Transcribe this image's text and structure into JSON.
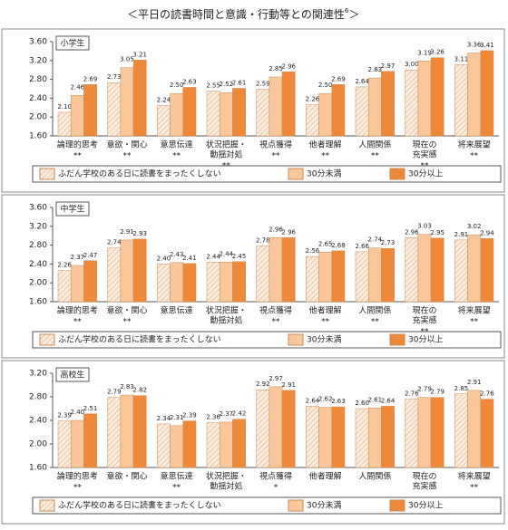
{
  "title": "＜平日の読書時間と意識・行動等との関連性",
  "title_note": "6",
  "title_end": "＞",
  "chart_data": [
    {
      "type": "bar",
      "panel": "小学生",
      "categories": [
        [
          "論理的思考"
        ],
        [
          "意欲・関心"
        ],
        [
          "意思伝達"
        ],
        [
          "状況把握・",
          "動揺対処"
        ],
        [
          "視点獲得"
        ],
        [
          "他者理解"
        ],
        [
          "人間関係"
        ],
        [
          "現在の",
          "充実感"
        ],
        [
          "将来展望"
        ]
      ],
      "significance": [
        "**",
        "**",
        "**",
        "**",
        "**",
        "**",
        "**",
        "**",
        "**"
      ],
      "ylim": [
        1.6,
        3.6
      ],
      "yticks": [
        {
          "value": 1.6,
          "label": "1.60"
        },
        {
          "value": 2,
          "label": "2.00"
        },
        {
          "value": 2.4,
          "label": "2.40"
        },
        {
          "value": 2.8,
          "label": "2.80"
        },
        {
          "value": 3.2,
          "label": "3.20"
        },
        {
          "value": 3.6,
          "label": "3.60"
        }
      ],
      "series": [
        {
          "name": "ふだん学校のある日に読書をまったくしない",
          "color": "#fbeee0",
          "pattern": "hatch",
          "values": [
            2.1,
            2.73,
            2.24,
            2.55,
            2.59,
            2.26,
            2.64,
            3.0,
            3.11
          ],
          "value_labels": [
            "2.10",
            "2.73",
            "2.24",
            "2.55",
            "2.59",
            "2.26",
            "2.64",
            "3.00",
            "3.11"
          ]
        },
        {
          "name": "30分未満",
          "color": "#f9c79a",
          "values": [
            2.46,
            3.05,
            2.5,
            2.52,
            2.85,
            2.5,
            2.83,
            3.19,
            3.36
          ],
          "value_labels": [
            "2.46",
            "3.05",
            "2.50",
            "2.52",
            "2.85",
            "2.50",
            "2.83",
            "3.19",
            "3.36"
          ]
        },
        {
          "name": "30分以上",
          "color": "#ef8838",
          "values": [
            2.69,
            3.21,
            2.63,
            2.61,
            2.96,
            2.69,
            2.97,
            3.26,
            3.41
          ],
          "value_labels": [
            "2.69",
            "3.21",
            "2.63",
            "2.61",
            "2.96",
            "2.69",
            "2.97",
            "3.26",
            "3.41"
          ]
        }
      ]
    },
    {
      "type": "bar",
      "panel": "中学生",
      "categories": [
        [
          "論理的思考"
        ],
        [
          "意欲・関心"
        ],
        [
          "意思伝達"
        ],
        [
          "状況把握・",
          "動揺対処"
        ],
        [
          "視点獲得"
        ],
        [
          "他者理解"
        ],
        [
          "人間関係"
        ],
        [
          "現在の",
          "充実感"
        ],
        [
          "将来展望"
        ]
      ],
      "significance": [
        "**",
        "**",
        null,
        null,
        "**",
        "**",
        "**",
        "**",
        "**"
      ],
      "ylim": [
        1.6,
        3.6
      ],
      "yticks": [
        {
          "value": 1.6,
          "label": "1.60"
        },
        {
          "value": 2,
          "label": "2.00"
        },
        {
          "value": 2.4,
          "label": "2.40"
        },
        {
          "value": 2.8,
          "label": "2.80"
        },
        {
          "value": 3.2,
          "label": "3.20"
        },
        {
          "value": 3.6,
          "label": "3.60"
        }
      ],
      "series": [
        {
          "name": "ふだん学校のある日に読書をまったくしない",
          "color": "#fbeee0",
          "pattern": "hatch",
          "values": [
            2.26,
            2.74,
            2.4,
            2.44,
            2.78,
            2.56,
            2.66,
            2.96,
            2.91
          ],
          "value_labels": [
            "2.26",
            "2.74",
            "2.40",
            "2.44",
            "2.78",
            "2.56",
            "2.66",
            "2.96",
            "2.91"
          ]
        },
        {
          "name": "30分未満",
          "color": "#f9c79a",
          "values": [
            2.37,
            2.91,
            2.43,
            2.44,
            2.96,
            2.65,
            2.74,
            3.03,
            3.02
          ],
          "value_labels": [
            "2.37",
            "2.91",
            "2.43",
            "2.44",
            "2.96",
            "2.65",
            "2.74",
            "3.03",
            "3.02"
          ]
        },
        {
          "name": "30分以上",
          "color": "#ef8838",
          "values": [
            2.47,
            2.93,
            2.41,
            2.45,
            2.96,
            2.68,
            2.73,
            2.95,
            2.94
          ],
          "value_labels": [
            "2.47",
            "2.93",
            "2.41",
            "2.45",
            "2.96",
            "2.68",
            "2.73",
            "2.95",
            "2.94"
          ]
        }
      ]
    },
    {
      "type": "bar",
      "panel": "高校生",
      "categories": [
        [
          "論理的思考"
        ],
        [
          "意欲・関心"
        ],
        [
          "意思伝達"
        ],
        [
          "状況把握・",
          "動揺対処"
        ],
        [
          "視点獲得"
        ],
        [
          "他者理解"
        ],
        [
          "人間関係"
        ],
        [
          "現在の",
          "充実感"
        ],
        [
          "将来展望"
        ]
      ],
      "significance": [
        "**",
        null,
        "**",
        null,
        "*",
        null,
        null,
        null,
        "**"
      ],
      "ylim": [
        1.6,
        3.2
      ],
      "yticks": [
        {
          "value": 1.6,
          "label": "1.60"
        },
        {
          "value": 2,
          "label": "2.00"
        },
        {
          "value": 2.4,
          "label": "2.40"
        },
        {
          "value": 2.8,
          "label": "2.80"
        },
        {
          "value": 3.2,
          "label": "3.20"
        }
      ],
      "series": [
        {
          "name": "ふだん学校のある日に読書をまったくしない",
          "color": "#fbeee0",
          "pattern": "hatch",
          "values": [
            2.39,
            2.79,
            2.34,
            2.36,
            2.92,
            2.64,
            2.6,
            2.76,
            2.85
          ],
          "value_labels": [
            "2.39",
            "2.79",
            "2.34",
            "2.36",
            "2.92",
            "2.64",
            "2.60",
            "2.76",
            "2.85"
          ]
        },
        {
          "name": "30分未満",
          "color": "#f9c79a",
          "values": [
            2.4,
            2.83,
            2.31,
            2.37,
            2.97,
            2.62,
            2.61,
            2.79,
            2.91
          ],
          "value_labels": [
            "2.40",
            "2.83",
            "2.31",
            "2.37",
            "2.97",
            "2.62",
            "2.61",
            "2.79",
            "2.91"
          ]
        },
        {
          "name": "30分以上",
          "color": "#ef8838",
          "values": [
            2.51,
            2.82,
            2.39,
            2.42,
            2.91,
            2.63,
            2.64,
            2.79,
            2.76
          ],
          "value_labels": [
            "2.51",
            "2.82",
            "2.39",
            "2.42",
            "2.91",
            "2.63",
            "2.64",
            "2.79",
            "2.76"
          ]
        }
      ]
    }
  ]
}
